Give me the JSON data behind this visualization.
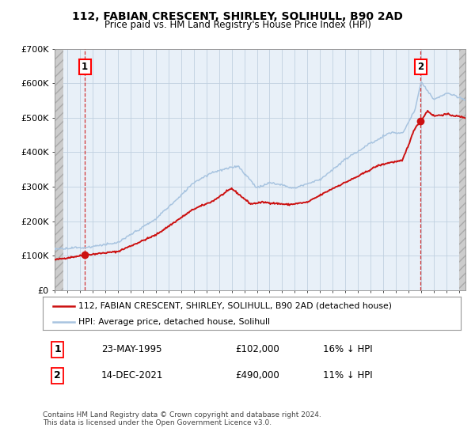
{
  "title": "112, FABIAN CRESCENT, SHIRLEY, SOLIHULL, B90 2AD",
  "subtitle": "Price paid vs. HM Land Registry's House Price Index (HPI)",
  "ylim": [
    0,
    700000
  ],
  "yticks": [
    0,
    100000,
    200000,
    300000,
    400000,
    500000,
    600000,
    700000
  ],
  "ytick_labels": [
    "£0",
    "£100K",
    "£200K",
    "£300K",
    "£400K",
    "£500K",
    "£600K",
    "£700K"
  ],
  "sale1_date": 1995.39,
  "sale1_price": 102000,
  "sale2_date": 2021.95,
  "sale2_price": 490000,
  "hpi_color": "#a8c4e0",
  "price_color": "#cc1111",
  "legend1": "112, FABIAN CRESCENT, SHIRLEY, SOLIHULL, B90 2AD (detached house)",
  "legend2": "HPI: Average price, detached house, Solihull",
  "table_row1": [
    "1",
    "23-MAY-1995",
    "£102,000",
    "16% ↓ HPI"
  ],
  "table_row2": [
    "2",
    "14-DEC-2021",
    "£490,000",
    "11% ↓ HPI"
  ],
  "footer": "Contains HM Land Registry data © Crown copyright and database right 2024.\nThis data is licensed under the Open Government Licence v3.0.",
  "bg_color": "#ffffff",
  "plot_bg": "#e8f0f8",
  "grid_color": "#c0d0e0",
  "xmin": 1993,
  "xmax": 2025.5,
  "hatch_left_end": 1993.7,
  "hatch_right_start": 2025.0
}
